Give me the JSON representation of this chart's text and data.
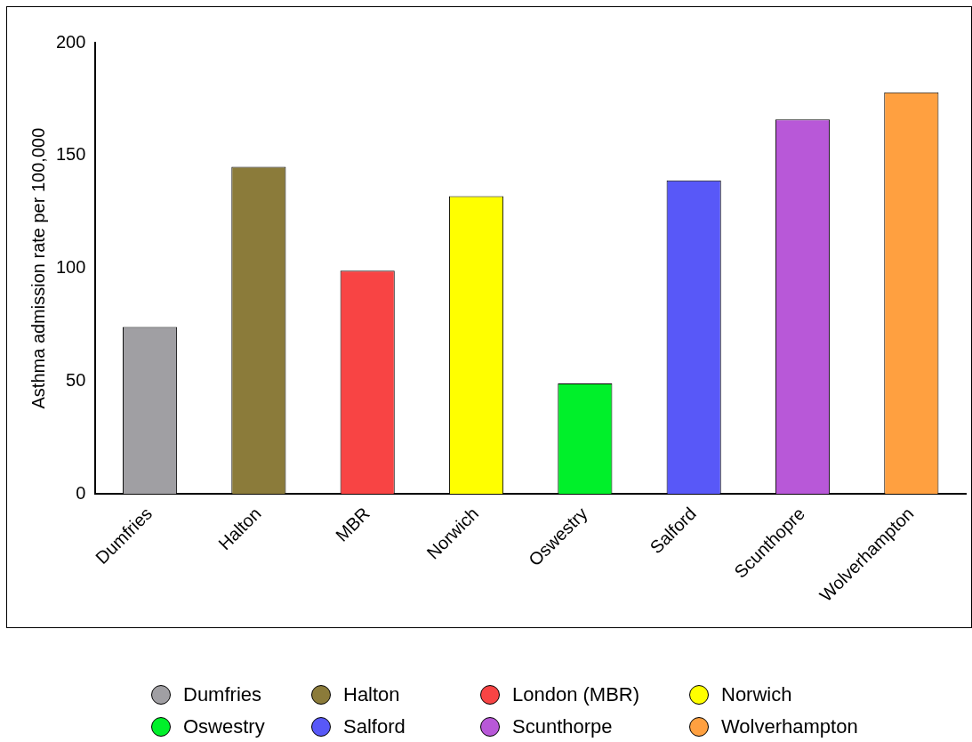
{
  "chart_data": {
    "type": "bar",
    "ylabel": "Asthma admission rate per 100,000",
    "categories": [
      "Dumfries",
      "Halton",
      "MBR",
      "Norwich",
      "Oswestry",
      "Salford",
      "Scunthopre",
      "Wolverhampton"
    ],
    "series": [
      {
        "name": "Dumfries",
        "color": "#a09fa3",
        "values": [
          74,
          null,
          null,
          null,
          null,
          null,
          null,
          null
        ]
      },
      {
        "name": "Halton",
        "color": "#8b7b3a",
        "values": [
          null,
          145,
          null,
          null,
          null,
          null,
          null,
          null
        ]
      },
      {
        "name": "London (MBR)",
        "color": "#f84444",
        "values": [
          null,
          null,
          99,
          null,
          null,
          null,
          null,
          null
        ]
      },
      {
        "name": "Norwich",
        "color": "#ffff00",
        "values": [
          null,
          null,
          null,
          132,
          null,
          null,
          null,
          null
        ]
      },
      {
        "name": "Oswestry",
        "color": "#00f02a",
        "values": [
          null,
          null,
          null,
          null,
          49,
          null,
          null,
          null
        ]
      },
      {
        "name": "Salford",
        "color": "#5858f8",
        "values": [
          null,
          null,
          null,
          null,
          null,
          139,
          null,
          null
        ]
      },
      {
        "name": "Scunthorpe",
        "color": "#b858d8",
        "values": [
          null,
          null,
          null,
          null,
          null,
          null,
          166,
          null
        ]
      },
      {
        "name": "Wolverhampton",
        "color": "#ffa040",
        "values": [
          null,
          null,
          null,
          null,
          null,
          null,
          null,
          178
        ]
      }
    ],
    "stacked": true,
    "ylim": [
      0,
      200
    ],
    "yticks": [
      0,
      50,
      100,
      150,
      200
    ],
    "grid": false,
    "legend": "bottom"
  }
}
